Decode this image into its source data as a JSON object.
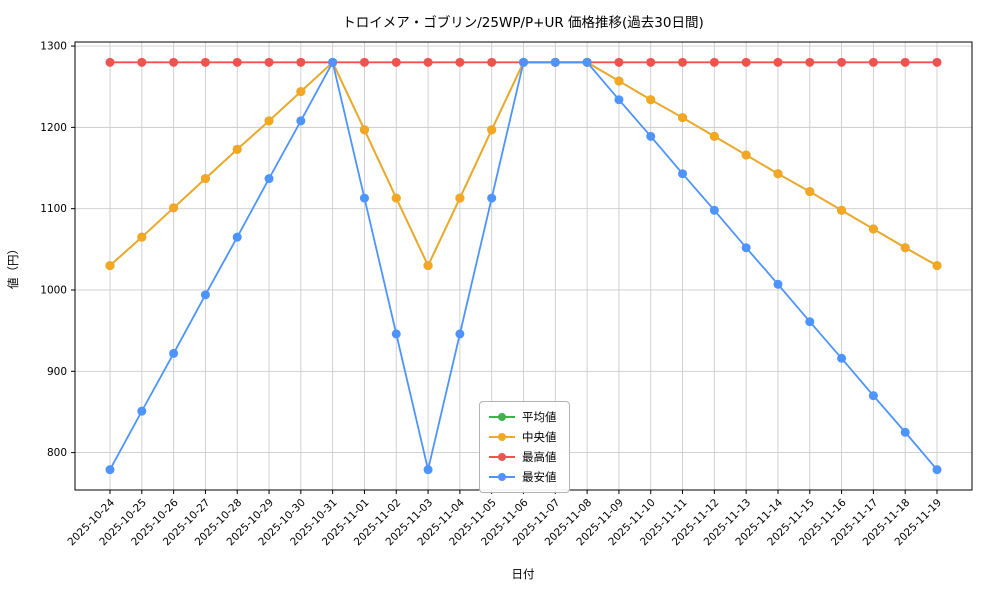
{
  "chart_data": {
    "type": "line",
    "title": "トロイメア・ゴブリン/25WP/P+UR 価格推移(過去30日間)",
    "xlabel": "日付",
    "ylabel": "値（円）",
    "grid": true,
    "legend_position": "inside-bottom-center",
    "ylim": [
      754,
      1305
    ],
    "yticks": [
      800,
      900,
      1000,
      1100,
      1200,
      1300
    ],
    "x": [
      "2025-10-24",
      "2025-10-25",
      "2025-10-26",
      "2025-10-27",
      "2025-10-28",
      "2025-10-29",
      "2025-10-30",
      "2025-10-31",
      "2025-11-01",
      "2025-11-02",
      "2025-11-03",
      "2025-11-04",
      "2025-11-05",
      "2025-11-06",
      "2025-11-07",
      "2025-11-08",
      "2025-11-09",
      "2025-11-10",
      "2025-11-11",
      "2025-11-12",
      "2025-11-13",
      "2025-11-14",
      "2025-11-15",
      "2025-11-16",
      "2025-11-17",
      "2025-11-18",
      "2025-11-19"
    ],
    "series": [
      {
        "id": "average",
        "name": "平均値",
        "color": "#3cb44b",
        "values": [
          1030,
          1065,
          1101,
          1137,
          1173,
          1208,
          1244,
          1280,
          1197,
          1113,
          1030,
          1113,
          1197,
          1280,
          1280,
          1280,
          1257,
          1234,
          1212,
          1189,
          1166,
          1143,
          1121,
          1098,
          1075,
          1052,
          1030
        ]
      },
      {
        "id": "median",
        "name": "中央値",
        "color": "#f5a623",
        "values": [
          1030,
          1065,
          1101,
          1137,
          1173,
          1208,
          1244,
          1280,
          1197,
          1113,
          1030,
          1113,
          1197,
          1280,
          1280,
          1280,
          1257,
          1234,
          1212,
          1189,
          1166,
          1143,
          1121,
          1098,
          1075,
          1052,
          1030
        ]
      },
      {
        "id": "highest",
        "name": "最高値",
        "color": "#ef5350",
        "values": [
          1280,
          1280,
          1280,
          1280,
          1280,
          1280,
          1280,
          1280,
          1280,
          1280,
          1280,
          1280,
          1280,
          1280,
          1280,
          1280,
          1280,
          1280,
          1280,
          1280,
          1280,
          1280,
          1280,
          1280,
          1280,
          1280,
          1280
        ]
      },
      {
        "id": "lowest",
        "name": "最安値",
        "color": "#4d94ff",
        "values": [
          779,
          851,
          922,
          994,
          1065,
          1137,
          1208,
          1280,
          1113,
          946,
          779,
          946,
          1113,
          1280,
          1280,
          1280,
          1234,
          1189,
          1143,
          1098,
          1052,
          1007,
          961,
          916,
          870,
          825,
          779
        ]
      }
    ],
    "grid_color": "#cccccc",
    "frame_color": "#000000",
    "background_color": "#ffffff"
  }
}
